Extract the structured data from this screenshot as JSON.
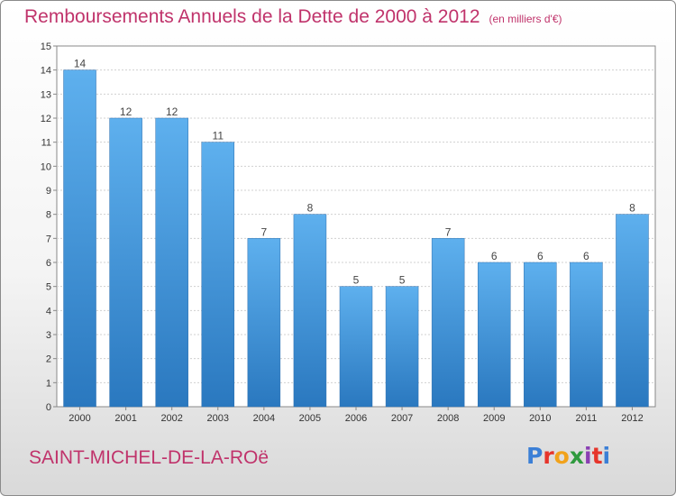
{
  "header": {
    "title": "Remboursements Annuels de la Dette de 2000 à 2012",
    "unit": "(en milliers d'€)"
  },
  "footer": {
    "commune": "SAINT-MICHEL-DE-LA-ROë"
  },
  "logo": {
    "letters": [
      "P",
      "r",
      "o",
      "x",
      "i",
      "t",
      "i"
    ],
    "colors": [
      "#3b7fd6",
      "#e6352b",
      "#f1a21b",
      "#2f9a3e",
      "#8a3fb3",
      "#e6352b",
      "#3b7fd6"
    ]
  },
  "chart_data": {
    "type": "bar",
    "title": "Remboursements Annuels de la Dette de 2000 à 2012",
    "subtitle": "(en milliers d'€)",
    "categories": [
      "2000",
      "2001",
      "2002",
      "2003",
      "2004",
      "2005",
      "2006",
      "2007",
      "2008",
      "2009",
      "2010",
      "2011",
      "2012"
    ],
    "values": [
      14,
      12,
      12,
      11,
      7,
      8,
      5,
      5,
      7,
      6,
      6,
      6,
      8
    ],
    "ylim": [
      0,
      15
    ],
    "yticks": [
      0,
      1,
      2,
      3,
      4,
      5,
      6,
      7,
      8,
      9,
      10,
      11,
      12,
      13,
      14,
      15
    ],
    "grid": true,
    "bar_color": "#4a9ee0"
  }
}
